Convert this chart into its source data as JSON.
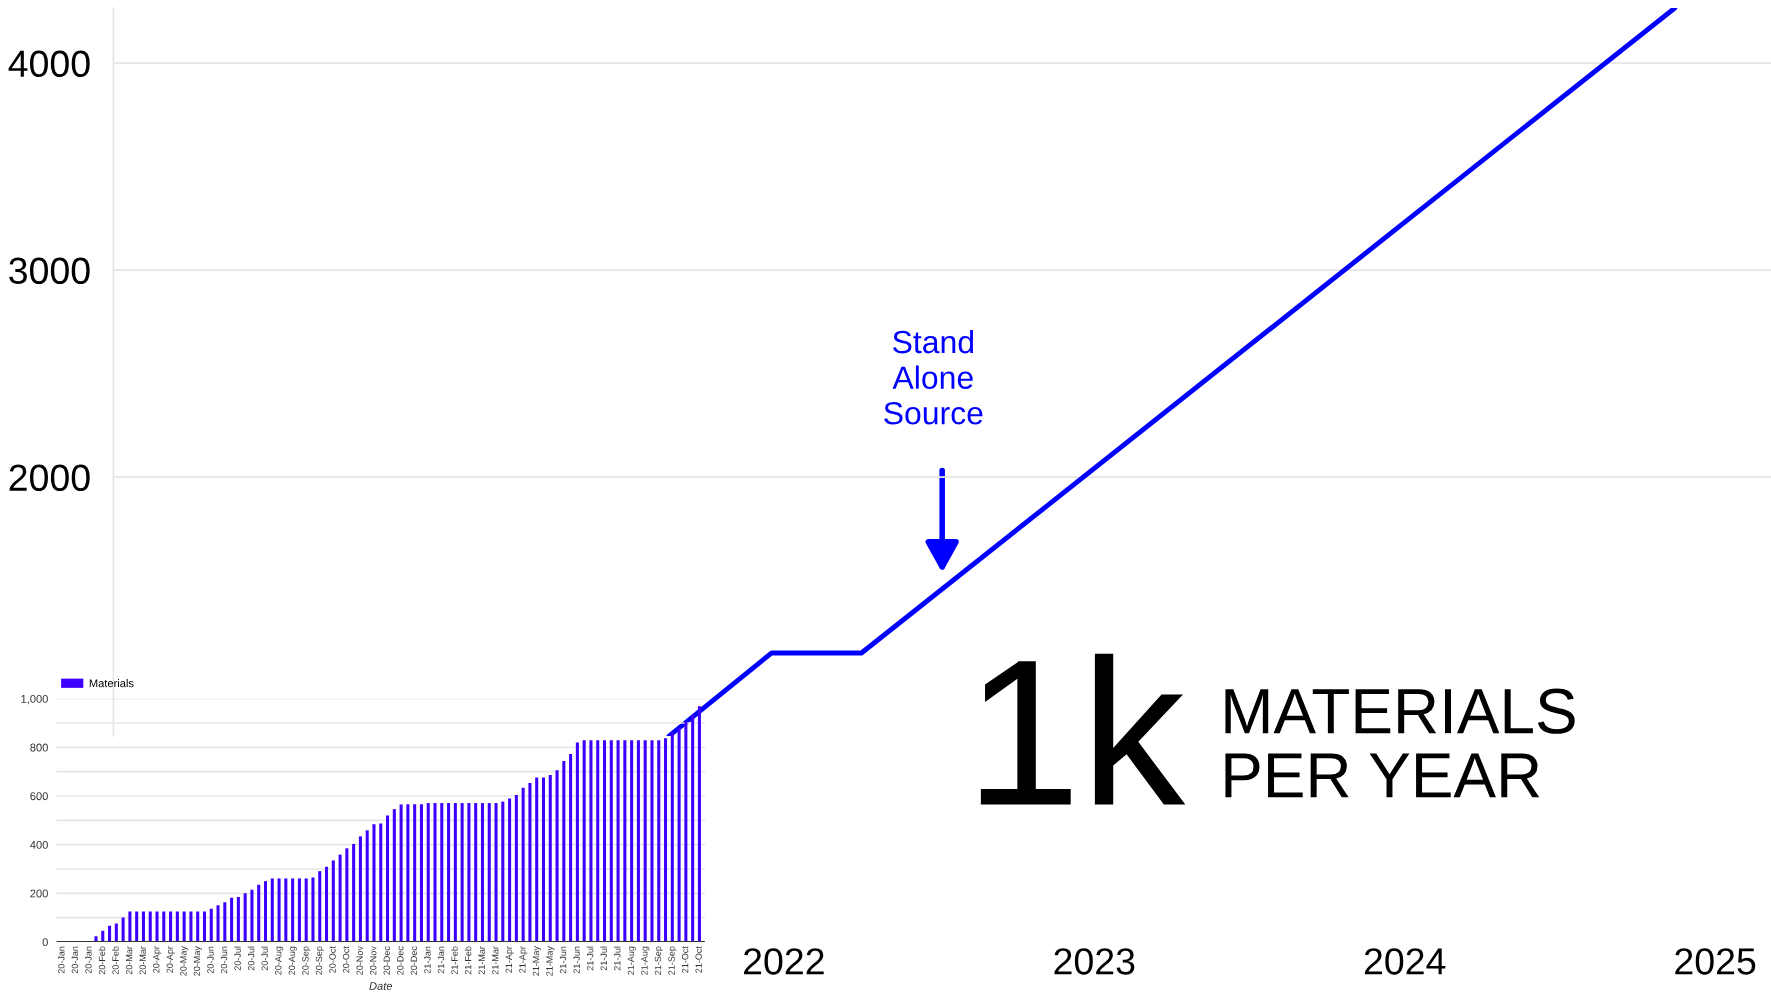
{
  "chart_data": [
    {
      "type": "bar",
      "xlabel": "Date",
      "categories": [
        "20-Jan",
        null,
        "20-Jan",
        null,
        "20-Jan",
        null,
        "20-Feb",
        null,
        "20-Feb",
        null,
        "20-Mar",
        null,
        "20-Mar",
        null,
        "20-Apr",
        null,
        "20-Apr",
        null,
        "20-May",
        null,
        "20-May",
        null,
        "20-Jun",
        null,
        "20-Jun",
        null,
        "20-Jul",
        null,
        "20-Jul",
        null,
        "20-Jul",
        null,
        "20-Aug",
        null,
        "20-Aug",
        null,
        "20-Sep",
        null,
        "20-Sep",
        null,
        "20-Oct",
        null,
        "20-Oct",
        null,
        "20-Nov",
        null,
        "20-Nov",
        null,
        "20-Dec",
        null,
        "20-Dec",
        null,
        "20-Dec",
        null,
        "21-Jan",
        null,
        "21-Jan",
        null,
        "21-Feb",
        null,
        "21-Feb",
        null,
        "21-Mar",
        null,
        "21-Mar",
        null,
        "21-Apr",
        null,
        "21-Apr",
        null,
        "21-May",
        null,
        "21-May",
        null,
        "21-Jun",
        null,
        "21-Jun",
        null,
        "21-Jul",
        null,
        "21-Jul",
        null,
        "21-Jul",
        null,
        "21-Aug",
        null,
        "21-Aug",
        null,
        "21-Sep",
        null,
        "21-Sep",
        null,
        "21-Oct",
        null,
        "21-Oct"
      ],
      "series": [
        {
          "name": "Materials",
          "color": "#3d00ff",
          "values": [
            0,
            0,
            0,
            0,
            0,
            23,
            46,
            67,
            76,
            100,
            125,
            125,
            125,
            125,
            125,
            125,
            125,
            125,
            125,
            125,
            125,
            125,
            136,
            151,
            163,
            182,
            185,
            200,
            215,
            235,
            250,
            261,
            261,
            261,
            261,
            261,
            261,
            265,
            291,
            309,
            335,
            359,
            385,
            403,
            434,
            459,
            484,
            487,
            520,
            546,
            565,
            566,
            566,
            566,
            571,
            571,
            571,
            571,
            571,
            571,
            571,
            571,
            571,
            571,
            571,
            577,
            590,
            604,
            634,
            653,
            676,
            676,
            686,
            706,
            744,
            773,
            820,
            829,
            829,
            829,
            829,
            829,
            829,
            829,
            829,
            829,
            829,
            829,
            829,
            837,
            863,
            880,
            907,
            933,
            969
          ]
        }
      ],
      "ylim": [
        0,
        1000
      ],
      "yticks": [
        0,
        {
          "value": 100,
          "label": null
        },
        200,
        {
          "value": 300,
          "label": null
        },
        400,
        {
          "value": 500,
          "label": null
        },
        600,
        {
          "value": 700,
          "label": null
        },
        800,
        {
          "value": 900,
          "label": null
        },
        {
          "value": 1000,
          "label": "1,000"
        }
      ],
      "grid": "y",
      "legend": "top left"
    },
    {
      "type": "line",
      "x": [
        2021.63,
        2021.96,
        2022.25,
        2024.87
      ],
      "series": [
        {
          "color": "#0000ff",
          "values": [
            749,
            1150,
            1150,
            4266
          ]
        }
      ],
      "xlim": [
        2019.84,
        2025.18
      ],
      "xticks": [
        2022,
        2023,
        2024,
        2025
      ],
      "ylim": [
        749,
        4266
      ],
      "yticks": [
        2000,
        3000,
        4000
      ],
      "grid": "y",
      "annotations": [
        "Stand\nAlone\nSource",
        "1k",
        "MATERIALS\nPER YEAR"
      ]
    }
  ]
}
